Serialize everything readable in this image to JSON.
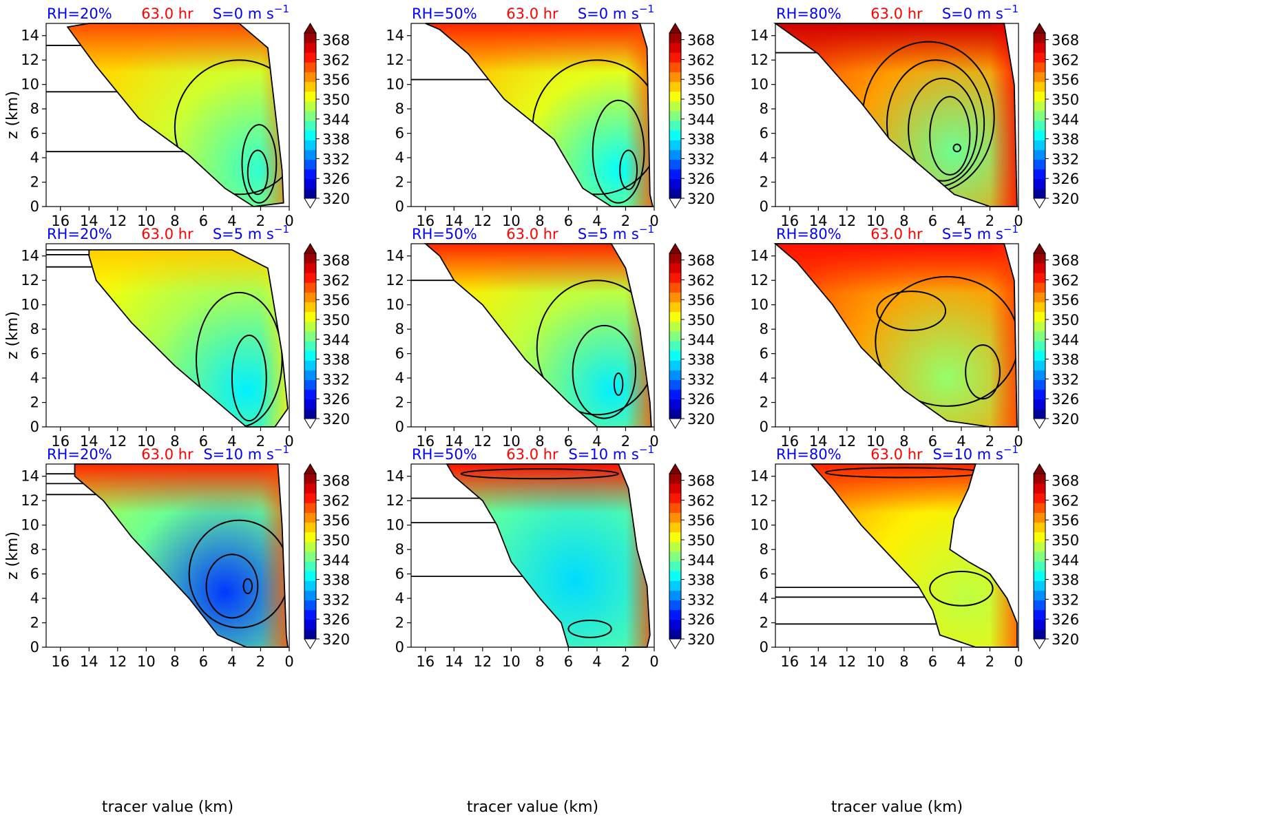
{
  "figure": {
    "time_label": "63.0 hr",
    "x_axis_label": "tracer value (km)",
    "y_axis_label": "z (km)",
    "colors": {
      "title_blue": "#0000ff",
      "title_red": "#ff0000",
      "contour": "#000000"
    }
  },
  "chart_data": {
    "type": "heatmap",
    "panel_grid": {
      "rows": 3,
      "cols": 3
    },
    "x_ticks": [
      16,
      14,
      12,
      10,
      8,
      6,
      4,
      2,
      0
    ],
    "y_ticks": [
      0,
      2,
      4,
      6,
      8,
      10,
      12,
      14
    ],
    "x_range_inverted": [
      17,
      0
    ],
    "y_range": [
      0,
      15
    ],
    "colorbar": {
      "ticks": [
        320,
        326,
        332,
        338,
        344,
        350,
        356,
        362,
        368
      ],
      "range": [
        320,
        370
      ],
      "colormap": "jet",
      "extend": "both"
    },
    "panels": [
      {
        "rh": "RH=20%",
        "time": "63.0 hr",
        "shear_prefix": "S=0 m s",
        "shear_exp": "−1",
        "shape": [
          [
            14,
            15
          ],
          [
            3.5,
            15
          ],
          [
            1.5,
            13
          ],
          [
            0.5,
            3
          ],
          [
            0.4,
            0.3
          ],
          [
            2.5,
            0
          ],
          [
            4.5,
            1.5
          ],
          [
            7,
            4.2
          ],
          [
            10.5,
            7.2
          ],
          [
            13.5,
            11.5
          ],
          [
            15.5,
            14.7
          ]
        ],
        "core": [
          2,
          3
        ],
        "core_temp": 341,
        "rim_temp": 349,
        "top_temp": 360,
        "contours": [
          {
            "cx": 2.2,
            "cy": 2.8,
            "rx": 0.7,
            "ry": 1.8
          },
          {
            "cx": 2.1,
            "cy": 3.5,
            "rx": 1.2,
            "ry": 3.2
          },
          {
            "cx": 3.5,
            "cy": 6.5,
            "rx": 4.5,
            "ry": 5.5
          }
        ],
        "hlines": [
          13.2,
          9.4,
          4.5
        ]
      },
      {
        "rh": "RH=50%",
        "time": "63.0 hr",
        "shear_prefix": "S=0 m s",
        "shear_exp": "−1",
        "shape": [
          [
            16,
            15
          ],
          [
            1,
            15
          ],
          [
            0.5,
            13
          ],
          [
            0.3,
            1
          ],
          [
            0.1,
            0
          ],
          [
            3,
            0
          ],
          [
            5,
            1.5
          ],
          [
            7,
            5.5
          ],
          [
            10.5,
            8.8
          ],
          [
            13,
            12.5
          ],
          [
            15,
            14.5
          ]
        ],
        "core": [
          2.5,
          3
        ],
        "core_temp": 339,
        "rim_temp": 350,
        "top_temp": 362,
        "contours": [
          {
            "cx": 1.8,
            "cy": 3,
            "rx": 0.6,
            "ry": 1.6
          },
          {
            "cx": 2.5,
            "cy": 4.5,
            "rx": 1.8,
            "ry": 4.2
          },
          {
            "cx": 4,
            "cy": 6.5,
            "rx": 4.5,
            "ry": 5.5
          }
        ],
        "hlines": [
          10.4
        ]
      },
      {
        "rh": "RH=80%",
        "time": "63.0 hr",
        "shear_prefix": "S=0 m s",
        "shear_exp": "−1",
        "shape": [
          [
            17,
            15
          ],
          [
            1,
            15
          ],
          [
            0.3,
            10
          ],
          [
            0.1,
            0
          ],
          [
            2,
            0
          ],
          [
            4.5,
            1
          ],
          [
            9,
            5.5
          ],
          [
            11,
            8.5
          ],
          [
            14,
            12.5
          ]
        ],
        "core": [
          4.5,
          4.5
        ],
        "core_temp": 344,
        "rim_temp": 356,
        "top_temp": 366,
        "contours": [
          {
            "cx": 4.3,
            "cy": 4.8,
            "rx": 0.25,
            "ry": 0.3
          },
          {
            "cx": 4.8,
            "cy": 5.8,
            "rx": 1.4,
            "ry": 3.2
          },
          {
            "cx": 5.3,
            "cy": 6.3,
            "rx": 2.4,
            "ry": 4.2
          },
          {
            "cx": 5.8,
            "cy": 6.8,
            "rx": 3.4,
            "ry": 5.2
          },
          {
            "cx": 6.3,
            "cy": 7.3,
            "rx": 4.6,
            "ry": 6.2
          }
        ],
        "hlines": [
          12.6
        ]
      },
      {
        "rh": "RH=20%",
        "time": "63.0 hr",
        "shear_prefix": "S=5 m s",
        "shear_exp": "−1",
        "shape": [
          [
            14,
            14.5
          ],
          [
            4,
            14.5
          ],
          [
            1.5,
            13
          ],
          [
            0.5,
            6
          ],
          [
            0.1,
            1.5
          ],
          [
            1,
            0
          ],
          [
            3,
            0
          ],
          [
            5,
            2
          ],
          [
            8,
            5
          ],
          [
            11,
            8.5
          ],
          [
            13.5,
            12
          ],
          [
            14,
            14
          ]
        ],
        "core": [
          3,
          3
        ],
        "core_temp": 338,
        "rim_temp": 347,
        "top_temp": 354,
        "contours": [
          {
            "cx": 2.8,
            "cy": 4,
            "rx": 1.2,
            "ry": 3.5
          },
          {
            "cx": 3.5,
            "cy": 5.5,
            "rx": 3,
            "ry": 5.5
          }
        ],
        "hlines": [
          14.5,
          14.1,
          13.1
        ]
      },
      {
        "rh": "RH=50%",
        "time": "63.0 hr",
        "shear_prefix": "S=5 m s",
        "shear_exp": "−1",
        "shape": [
          [
            16,
            15
          ],
          [
            3,
            15
          ],
          [
            2,
            13
          ],
          [
            1,
            8
          ],
          [
            0.3,
            2
          ],
          [
            0.2,
            0
          ],
          [
            4,
            0
          ],
          [
            6,
            2
          ],
          [
            9,
            5.5
          ],
          [
            12,
            10
          ],
          [
            14,
            12
          ],
          [
            15,
            14
          ]
        ],
        "core": [
          3,
          3
        ],
        "core_temp": 338,
        "rim_temp": 348,
        "top_temp": 362,
        "contours": [
          {
            "cx": 2.5,
            "cy": 3.5,
            "rx": 0.3,
            "ry": 0.9
          },
          {
            "cx": 3.5,
            "cy": 4.5,
            "rx": 2.2,
            "ry": 3.8
          },
          {
            "cx": 4,
            "cy": 6.5,
            "rx": 4.2,
            "ry": 5.5
          }
        ],
        "hlines": [
          12
        ]
      },
      {
        "rh": "RH=80%",
        "time": "63.0 hr",
        "shear_prefix": "S=5 m s",
        "shear_exp": "−1",
        "shape": [
          [
            17,
            15
          ],
          [
            1,
            15
          ],
          [
            0.3,
            12
          ],
          [
            0.1,
            0
          ],
          [
            2,
            0
          ],
          [
            5,
            0.5
          ],
          [
            8,
            3
          ],
          [
            11,
            6.5
          ],
          [
            13,
            10
          ],
          [
            15.5,
            13.5
          ]
        ],
        "core": [
          5,
          4
        ],
        "core_temp": 346,
        "rim_temp": 356,
        "top_temp": 363,
        "contours": [
          {
            "cx": 2.5,
            "cy": 4.5,
            "rx": 1.2,
            "ry": 2.2
          },
          {
            "cx": 7.5,
            "cy": 9.5,
            "rx": 2.4,
            "ry": 1.6
          },
          {
            "cx": 5,
            "cy": 7,
            "rx": 5,
            "ry": 5.3
          }
        ],
        "hlines": []
      },
      {
        "rh": "RH=20%",
        "time": "63.0 hr",
        "shear_prefix": "S=10 m s",
        "shear_exp": "−1",
        "shape": [
          [
            15,
            15
          ],
          [
            0.8,
            15
          ],
          [
            0.5,
            10
          ],
          [
            0.2,
            1
          ],
          [
            0.1,
            0
          ],
          [
            3,
            0
          ],
          [
            5,
            1
          ],
          [
            7,
            4
          ],
          [
            9,
            6.5
          ],
          [
            11,
            9
          ],
          [
            13,
            12
          ],
          [
            15,
            14
          ]
        ],
        "core": [
          4.5,
          4.5
        ],
        "core_temp": 329,
        "rim_temp": 344,
        "top_temp": 362,
        "contours": [
          {
            "cx": 2.9,
            "cy": 5,
            "rx": 0.3,
            "ry": 0.6
          },
          {
            "cx": 4,
            "cy": 5,
            "rx": 1.8,
            "ry": 2.6
          },
          {
            "cx": 3.5,
            "cy": 6,
            "rx": 3.5,
            "ry": 4.4
          }
        ],
        "hlines": [
          14.2,
          13.4,
          12.5
        ]
      },
      {
        "rh": "RH=50%",
        "time": "63.0 hr",
        "shear_prefix": "S=10 m s",
        "shear_exp": "−1",
        "shape": [
          [
            14.5,
            15
          ],
          [
            2.5,
            15
          ],
          [
            1.8,
            13
          ],
          [
            1.2,
            8
          ],
          [
            0.5,
            5
          ],
          [
            0.3,
            1
          ],
          [
            0.5,
            0
          ],
          [
            6,
            0
          ],
          [
            6.5,
            2
          ],
          [
            8,
            4
          ],
          [
            10,
            7
          ],
          [
            11,
            10
          ],
          [
            12,
            12
          ],
          [
            14,
            14
          ]
        ],
        "core": [
          5.5,
          5.5
        ],
        "core_temp": 337,
        "rim_temp": 343,
        "top_temp": 363,
        "contours": [
          {
            "cx": 4.5,
            "cy": 1.5,
            "rx": 1.5,
            "ry": 0.7
          },
          {
            "cx": 8,
            "cy": 14.2,
            "rx": 5.5,
            "ry": 0.4
          }
        ],
        "hlines": [
          12.2,
          10.2,
          5.8
        ]
      },
      {
        "rh": "RH=80%",
        "time": "63.0 hr",
        "shear_prefix": "S=10 m s",
        "shear_exp": "−1",
        "shape": [
          [
            14.5,
            15
          ],
          [
            3,
            15
          ],
          [
            3.5,
            13
          ],
          [
            4.5,
            10.5
          ],
          [
            4.8,
            8
          ],
          [
            3.5,
            7
          ],
          [
            2,
            6
          ],
          [
            0.8,
            4
          ],
          [
            0.1,
            2
          ],
          [
            0.1,
            0
          ],
          [
            3,
            0
          ],
          [
            5.5,
            1
          ],
          [
            6,
            3
          ],
          [
            7,
            5
          ],
          [
            9,
            7.5
          ],
          [
            11,
            10
          ],
          [
            13,
            13
          ]
        ],
        "core": [
          3.5,
          4
        ],
        "core_temp": 348,
        "rim_temp": 352,
        "top_temp": 362,
        "contours": [
          {
            "cx": 4,
            "cy": 4.8,
            "rx": 2.2,
            "ry": 1.4
          },
          {
            "cx": 8,
            "cy": 14.3,
            "rx": 5.5,
            "ry": 0.4
          }
        ],
        "hlines": [
          4.9,
          4.1,
          1.9
        ]
      }
    ]
  }
}
